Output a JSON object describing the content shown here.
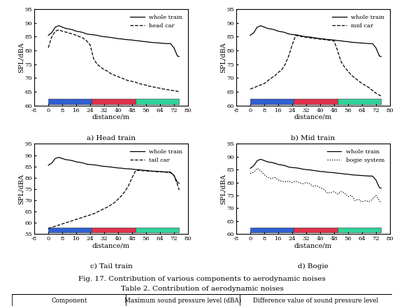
{
  "chart_data": [
    {
      "type": "line",
      "title": "a) Head train",
      "x_label": "distance/m",
      "y_label": "SPL/dBA",
      "x": [
        0,
        2,
        4,
        6,
        8,
        10,
        12,
        14,
        16,
        18,
        20,
        22,
        24,
        26,
        28,
        30,
        32,
        34,
        36,
        38,
        40,
        42,
        44,
        46,
        48,
        50,
        52,
        54,
        56,
        58,
        60,
        62,
        64,
        66,
        68,
        70,
        72,
        74,
        75
      ],
      "series": [
        {
          "name": "whole train",
          "color": "#000000",
          "line_style": "solid",
          "values": [
            85.5,
            86.5,
            88.5,
            89,
            88.5,
            88,
            87.8,
            87.5,
            87,
            86.8,
            86.5,
            86,
            85.8,
            85.7,
            85.5,
            85.2,
            85,
            84.9,
            84.7,
            84.5,
            84.3,
            84.2,
            84,
            83.9,
            83.8,
            83.6,
            83.5,
            83.3,
            83.2,
            83,
            82.9,
            82.8,
            82.7,
            82.6,
            82.5,
            82.5,
            81,
            78,
            77.8
          ]
        },
        {
          "name": "head car",
          "color": "#000000",
          "line_style": "dashed",
          "values": [
            81,
            85,
            87,
            87.5,
            87,
            86.7,
            86.3,
            86,
            85.5,
            85,
            84.5,
            83.5,
            82,
            77,
            75,
            74,
            73,
            72.5,
            71.5,
            71,
            70.5,
            70,
            69.5,
            69,
            68.8,
            68.5,
            68,
            67.7,
            67.4,
            67,
            66.8,
            66.5,
            66.3,
            66,
            65.8,
            65.6,
            65.4,
            65.2,
            65
          ]
        }
      ],
      "xlim": [
        -8,
        80
      ],
      "xticks": [
        -8,
        0,
        8,
        16,
        24,
        32,
        40,
        48,
        56,
        64,
        72,
        80
      ],
      "ylim": [
        60,
        95
      ],
      "yticks": [
        60,
        65,
        70,
        75,
        80,
        85,
        90,
        95
      ],
      "legend": "upper right"
    },
    {
      "type": "line",
      "title": "b) Mid train",
      "x_label": "distance/m",
      "y_label": "SPL/dBA",
      "x": [
        0,
        2,
        4,
        6,
        8,
        10,
        12,
        14,
        16,
        18,
        20,
        22,
        24,
        26,
        28,
        30,
        32,
        34,
        36,
        38,
        40,
        42,
        44,
        46,
        48,
        50,
        52,
        54,
        56,
        58,
        60,
        62,
        64,
        66,
        68,
        70,
        72,
        74,
        75
      ],
      "series": [
        {
          "name": "whole train",
          "color": "#000000",
          "line_style": "solid",
          "values": [
            85.5,
            86.5,
            88.5,
            89,
            88.5,
            88,
            87.8,
            87.5,
            87,
            86.8,
            86.5,
            86,
            85.8,
            85.7,
            85.5,
            85.2,
            85,
            84.9,
            84.7,
            84.5,
            84.3,
            84.2,
            84,
            83.9,
            83.8,
            83.6,
            83.5,
            83.3,
            83.2,
            83,
            82.9,
            82.8,
            82.7,
            82.6,
            82.5,
            82.5,
            81,
            78,
            77.8
          ]
        },
        {
          "name": "mid car",
          "color": "#000000",
          "line_style": "dashed",
          "values": [
            66,
            66.5,
            67,
            67.5,
            68,
            69,
            70,
            70.8,
            72,
            73,
            75,
            78,
            82,
            85.5,
            85.2,
            85,
            84.8,
            84.6,
            84.4,
            84.3,
            84.1,
            84,
            83.8,
            83.7,
            83.5,
            80,
            76,
            74,
            72.5,
            71,
            70,
            69,
            68,
            67.3,
            66.5,
            65.5,
            64.5,
            63.8,
            63.5
          ]
        }
      ],
      "xlim": [
        -8,
        80
      ],
      "xticks": [
        -8,
        0,
        8,
        16,
        24,
        32,
        40,
        48,
        56,
        64,
        72,
        80
      ],
      "ylim": [
        60,
        95
      ],
      "yticks": [
        60,
        65,
        70,
        75,
        80,
        85,
        90,
        95
      ],
      "legend": "upper right"
    },
    {
      "type": "line",
      "title": "c) Tail train",
      "x_label": "distance/m",
      "y_label": "SPL/dBA",
      "x": [
        0,
        2,
        4,
        6,
        8,
        10,
        12,
        14,
        16,
        18,
        20,
        22,
        24,
        26,
        28,
        30,
        32,
        34,
        36,
        38,
        40,
        42,
        44,
        46,
        48,
        50,
        52,
        54,
        56,
        58,
        60,
        62,
        64,
        66,
        68,
        70,
        72,
        74,
        75
      ],
      "series": [
        {
          "name": "whole train",
          "color": "#000000",
          "line_style": "solid",
          "values": [
            85.5,
            86.5,
            88.5,
            89,
            88.5,
            88,
            87.8,
            87.5,
            87,
            86.8,
            86.5,
            86,
            85.8,
            85.7,
            85.5,
            85.2,
            85,
            84.9,
            84.7,
            84.5,
            84.3,
            84.2,
            84,
            83.9,
            83.8,
            83.6,
            83.5,
            83.3,
            83.2,
            83,
            82.9,
            82.8,
            82.7,
            82.6,
            82.5,
            82.5,
            81,
            78,
            77.5
          ]
        },
        {
          "name": "tail car",
          "color": "#000000",
          "line_style": "dashed",
          "values": [
            57.5,
            58,
            58.5,
            59,
            59.5,
            60,
            60.5,
            61,
            61.5,
            62,
            62.5,
            63,
            63.5,
            64,
            64.8,
            65.5,
            66.3,
            67,
            68,
            69,
            70.5,
            72,
            74,
            76.5,
            80,
            83,
            83.3,
            83.1,
            83,
            82.9,
            82.8,
            82.7,
            82.6,
            82.5,
            82.4,
            82.3,
            81,
            77,
            74.5
          ]
        }
      ],
      "xlim": [
        -8,
        80
      ],
      "xticks": [
        -8,
        0,
        8,
        16,
        24,
        32,
        40,
        48,
        56,
        64,
        72,
        80
      ],
      "ylim": [
        55,
        95
      ],
      "yticks": [
        55,
        60,
        65,
        70,
        75,
        80,
        85,
        90,
        95
      ],
      "legend": "upper right"
    },
    {
      "type": "line",
      "title": "d) Bogie",
      "x_label": "distance/m",
      "y_label": "SPL/dBA",
      "x": [
        0,
        2,
        4,
        6,
        8,
        10,
        12,
        14,
        16,
        18,
        20,
        22,
        24,
        26,
        28,
        30,
        32,
        34,
        36,
        38,
        40,
        42,
        44,
        46,
        48,
        50,
        52,
        54,
        56,
        58,
        60,
        62,
        64,
        66,
        68,
        70,
        72,
        74,
        75
      ],
      "series": [
        {
          "name": "whole train",
          "color": "#000000",
          "line_style": "solid",
          "values": [
            85.5,
            86.5,
            88.5,
            89,
            88.5,
            88,
            87.8,
            87.5,
            87,
            86.8,
            86.5,
            86,
            85.8,
            85.7,
            85.5,
            85.2,
            85,
            84.9,
            84.7,
            84.5,
            84.3,
            84.2,
            84,
            83.9,
            83.8,
            83.6,
            83.5,
            83.3,
            83.2,
            83,
            82.9,
            82.8,
            82.7,
            82.6,
            82.5,
            82.5,
            81,
            78,
            77.8
          ]
        },
        {
          "name": "bogie system",
          "color": "#000000",
          "line_style": "dotted",
          "values": [
            83.5,
            84,
            85.5,
            84.5,
            83,
            82,
            81.5,
            82,
            81,
            80.5,
            80.3,
            80.5,
            80,
            80.5,
            80,
            79.5,
            80,
            79.5,
            78.5,
            78.8,
            78,
            77.5,
            76,
            76,
            76.5,
            75.5,
            76.5,
            76,
            74.5,
            75,
            73,
            73.5,
            72.5,
            73,
            72.5,
            73.5,
            75,
            73,
            72
          ]
        }
      ],
      "xlim": [
        -8,
        80
      ],
      "xticks": [
        -8,
        0,
        8,
        16,
        24,
        32,
        40,
        48,
        56,
        64,
        72,
        80
      ],
      "ylim": [
        60,
        95
      ],
      "yticks": [
        60,
        65,
        70,
        75,
        80,
        85,
        90,
        95
      ],
      "legend": "upper right"
    }
  ],
  "caption": "Fig. 17. Contribution of various components to aerodynamic noises",
  "table": {
    "caption": "Table 2. Contribution of aerodynamic noises",
    "header": [
      "Component",
      "Maximum sound pressure level (dBA)",
      "Difference value of sound pressure level"
    ]
  }
}
